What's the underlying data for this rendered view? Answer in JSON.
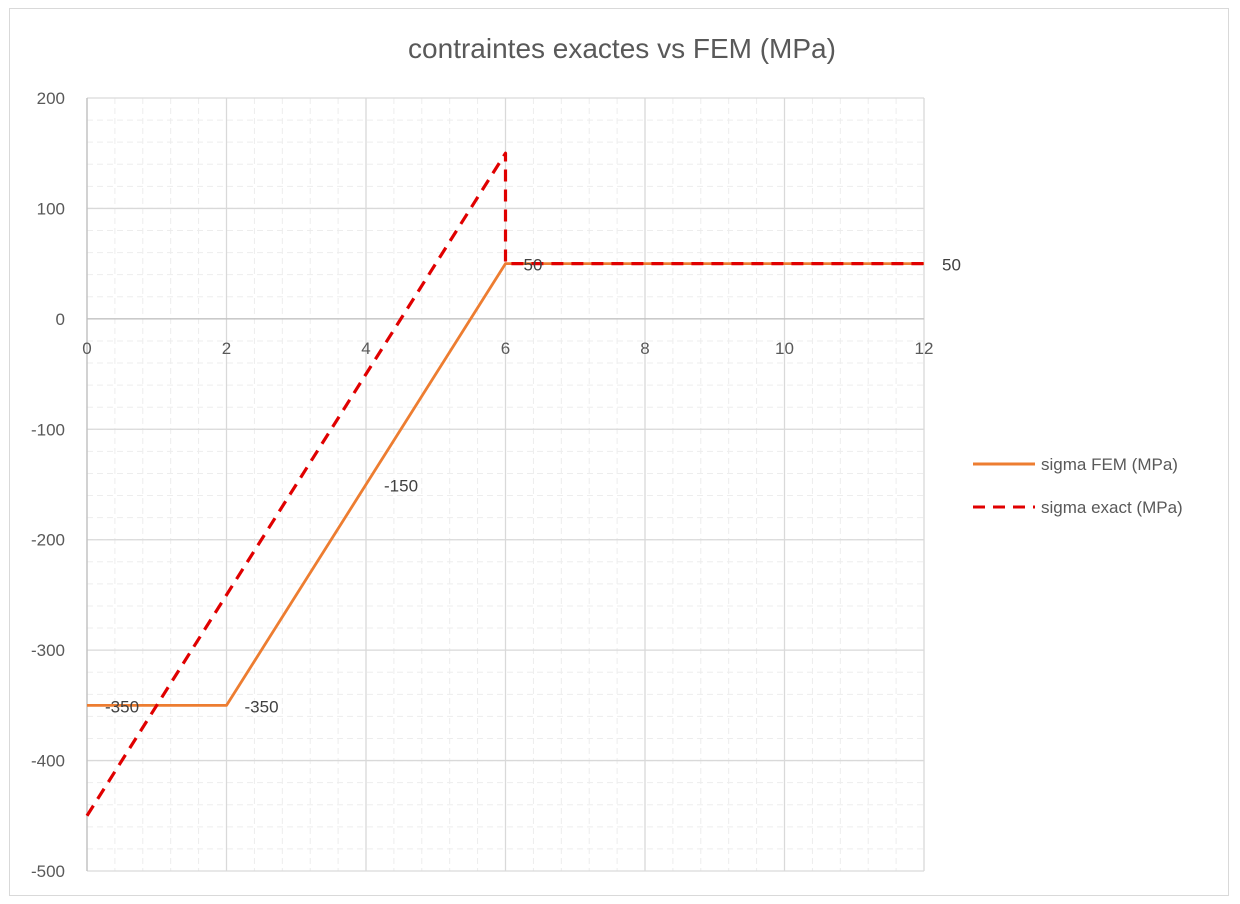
{
  "chart_data": {
    "type": "line",
    "title": "contraintes exactes vs FEM (MPa)",
    "xlabel": "",
    "ylabel": "",
    "xlim": [
      0,
      12
    ],
    "ylim": [
      -500,
      200
    ],
    "x_ticks": [
      0,
      2,
      4,
      6,
      8,
      10,
      12
    ],
    "y_ticks": [
      200,
      100,
      0,
      -100,
      -200,
      -300,
      -400,
      -500
    ],
    "grid": {
      "major": true,
      "minor": true
    },
    "legend_position": "right",
    "series": [
      {
        "name": "sigma FEM (MPa)",
        "color": "#ed7d31",
        "style": "solid",
        "points": [
          [
            0,
            -350
          ],
          [
            2,
            -350
          ],
          [
            6,
            50
          ],
          [
            12,
            50
          ]
        ]
      },
      {
        "name": "sigma exact (MPa)",
        "color": "#e00000",
        "style": "dashed",
        "points": [
          [
            0,
            -450
          ],
          [
            6,
            150
          ],
          [
            6,
            50
          ],
          [
            12,
            50
          ]
        ]
      }
    ],
    "data_labels": [
      {
        "x": 0,
        "y": -350,
        "text": "-350"
      },
      {
        "x": 2,
        "y": -350,
        "text": "-350"
      },
      {
        "x": 4,
        "y": -150,
        "text": "-150"
      },
      {
        "x": 6,
        "y": 50,
        "text": "50"
      },
      {
        "x": 12,
        "y": 50,
        "text": "50"
      }
    ]
  }
}
